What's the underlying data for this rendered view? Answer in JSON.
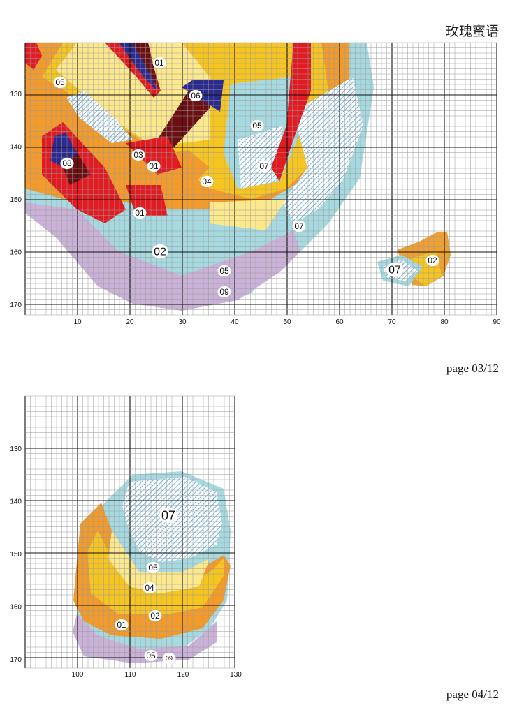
{
  "document": {
    "title": "玫瑰蜜语"
  },
  "pages": [
    {
      "label": "page 03/12",
      "x_ticks": [
        "10",
        "20",
        "30",
        "40",
        "50",
        "60",
        "70",
        "80",
        "90"
      ],
      "y_ticks": [
        "130",
        "140",
        "150",
        "160",
        "170"
      ],
      "symbols": [
        "01",
        "05",
        "06",
        "05",
        "03",
        "01",
        "07",
        "08",
        "04",
        "01",
        "07",
        "02",
        "05",
        "09",
        "07",
        "02"
      ]
    },
    {
      "label": "page 04/12",
      "x_ticks": [
        "100",
        "110",
        "120",
        "130"
      ],
      "y_ticks": [
        "130",
        "140",
        "150",
        "160",
        "170"
      ],
      "symbols": [
        "07",
        "05",
        "04",
        "01",
        "02",
        "05",
        "09"
      ]
    }
  ],
  "colors": {
    "grid_line": "#9a9a9a",
    "grid_major": "#111111",
    "c01": "#f7c520",
    "c02": "#f29a2a",
    "c03": "#e21b23",
    "c04": "#fde98d",
    "c05": "#a6dae0",
    "c06": "#6b0f12",
    "c07_hatch": "#4aa3d8",
    "c08": "#2a2a8f",
    "c09": "#c9b1d8",
    "c_orange2": "#f0a030"
  }
}
